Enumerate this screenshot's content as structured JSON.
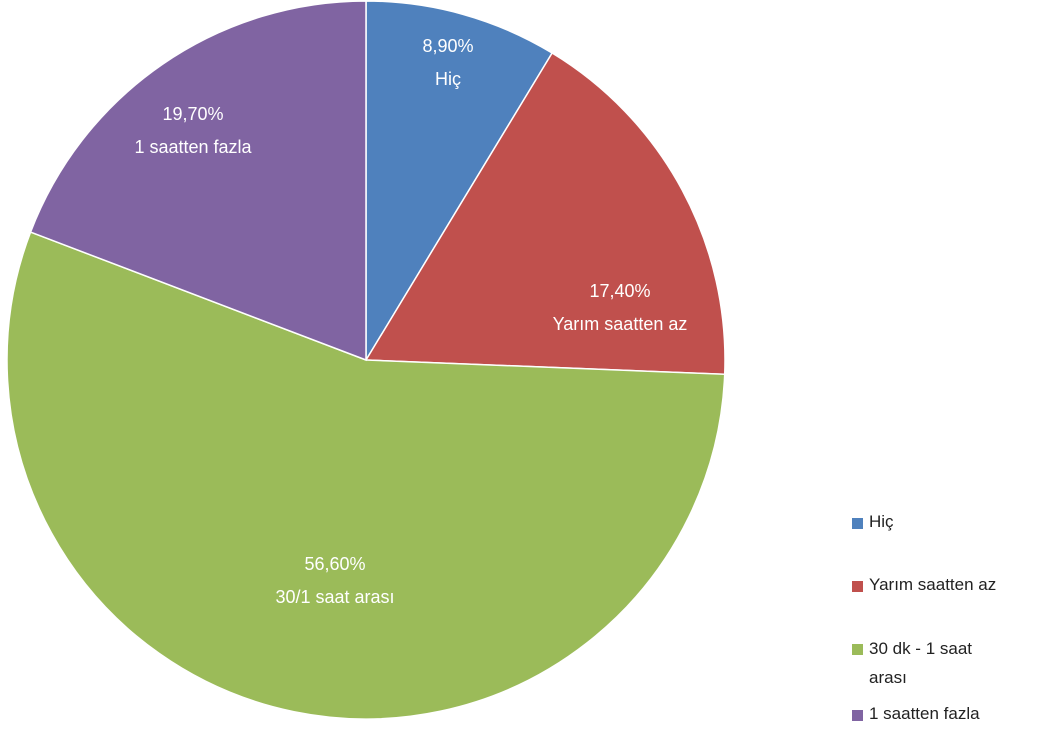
{
  "chart_data": {
    "type": "pie",
    "categories": [
      "Hiç",
      "Yarım saatten az",
      "30 dk - 1 saat arası",
      "1 saatten fazla"
    ],
    "values": [
      8.9,
      17.4,
      56.6,
      19.7
    ],
    "value_labels": [
      "8,90%",
      "17,40%",
      "56,60%",
      "19,70%"
    ],
    "label_names": [
      "Hiç",
      "Yarım saatten az",
      "30/1 saat arası",
      "1 saatten fazla"
    ],
    "colors": [
      "#4f81bd",
      "#c0504d",
      "#9bbb59",
      "#8064a2"
    ],
    "legend": "right"
  }
}
